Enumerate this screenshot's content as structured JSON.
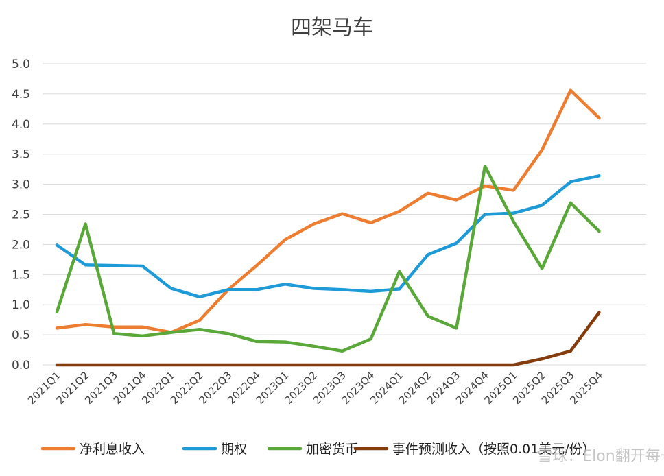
{
  "chart_data": {
    "type": "line",
    "title": "四架马车",
    "xlabel": "",
    "ylabel": "",
    "ylim": [
      0,
      5
    ],
    "yticks": [
      "0.0",
      "0.5",
      "1.0",
      "1.5",
      "2.0",
      "2.5",
      "3.0",
      "3.5",
      "4.0",
      "4.5",
      "5.0"
    ],
    "grid": true,
    "legend_position": "bottom",
    "categories": [
      "2021Q1",
      "2021Q2",
      "2021Q3",
      "2021Q4",
      "2022Q1",
      "2022Q2",
      "2022Q3",
      "2022Q4",
      "2023Q1",
      "2023Q2",
      "2023Q3",
      "2023Q4",
      "2024Q1",
      "2024Q2",
      "2024Q3",
      "2024Q4",
      "2025Q1",
      "2025Q2",
      "2025Q3",
      "2025Q4"
    ],
    "series": [
      {
        "name": "净利息收入",
        "color": "#ED7D31",
        "values": [
          0.61,
          0.67,
          0.63,
          0.63,
          0.54,
          0.74,
          1.25,
          1.65,
          2.08,
          2.34,
          2.51,
          2.36,
          2.55,
          2.85,
          2.74,
          2.97,
          2.9,
          3.57,
          4.56,
          4.1
        ]
      },
      {
        "name": "期权",
        "color": "#1E9BD7",
        "values": [
          1.99,
          1.66,
          1.65,
          1.64,
          1.27,
          1.13,
          1.25,
          1.25,
          1.34,
          1.27,
          1.25,
          1.22,
          1.26,
          1.83,
          2.02,
          2.5,
          2.52,
          2.65,
          3.04,
          3.14
        ]
      },
      {
        "name": "加密货币",
        "color": "#5AA83A",
        "values": [
          0.88,
          2.34,
          0.52,
          0.48,
          0.54,
          0.59,
          0.52,
          0.39,
          0.38,
          0.31,
          0.23,
          0.43,
          1.55,
          0.81,
          0.61,
          3.3,
          2.38,
          1.6,
          2.69,
          2.22
        ]
      },
      {
        "name": "事件预测收入（按照0.01美元/份）",
        "color": "#843C0C",
        "values": [
          0,
          0,
          0,
          0,
          0,
          0,
          0,
          0,
          0,
          0,
          0,
          0,
          0,
          0,
          0,
          0,
          0,
          0.1,
          0.23,
          0.87
        ]
      }
    ]
  },
  "watermark": "雪球：Elon翻开每一页"
}
